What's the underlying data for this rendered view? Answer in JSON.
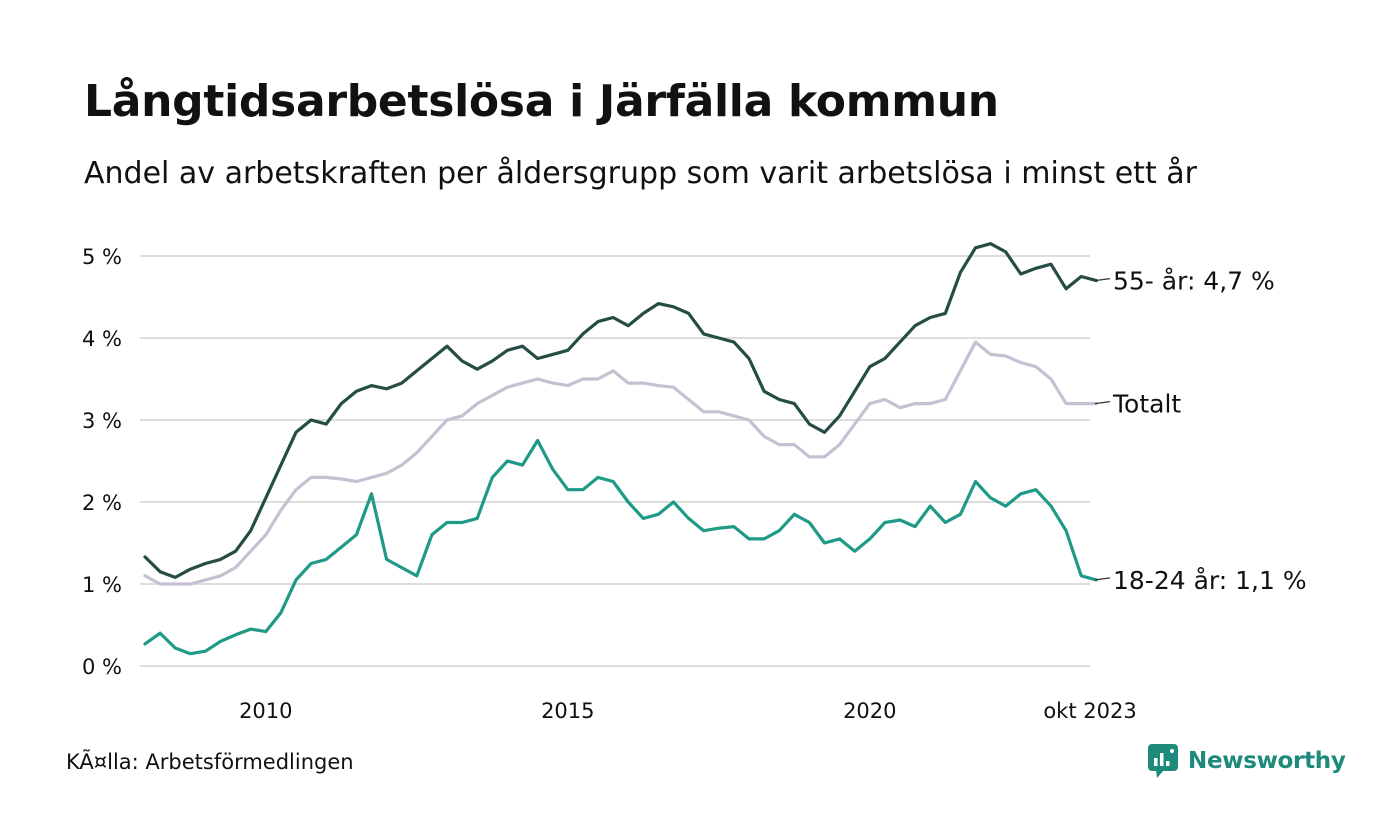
{
  "title": "Långtidsarbetslösa i Järfälla kommun",
  "subtitle": "Andel av arbetskraften per åldersgrupp som varit arbetslösa i minst ett år",
  "source": "KÃ¤lla: Arbetsförmedlingen",
  "brand": "Newsworthy",
  "colors": {
    "dark_green": "#264d45",
    "teal": "#1f9a86",
    "lavender": "#c4c2d2",
    "grid": "#dddddd",
    "brand": "#1e8a7b"
  },
  "chart_data": {
    "type": "line",
    "title": "Långtidsarbetslösa i Järfälla kommun",
    "ylabel": "",
    "xlabel": "",
    "ylim": [
      0,
      5.2
    ],
    "xlim": [
      2008.0,
      2023.75
    ],
    "yticks": [
      {
        "value": 0,
        "label": "0 %"
      },
      {
        "value": 1,
        "label": "1 %"
      },
      {
        "value": 2,
        "label": "2 %"
      },
      {
        "value": 3,
        "label": "3 %"
      },
      {
        "value": 4,
        "label": "4 %"
      },
      {
        "value": 5,
        "label": "5 %"
      }
    ],
    "xticks": [
      {
        "value": 2010,
        "label": "2010"
      },
      {
        "value": 2015,
        "label": "2015"
      },
      {
        "value": 2020,
        "label": "2020"
      },
      {
        "value": 2023.75,
        "label": "okt 2023"
      }
    ],
    "series": [
      {
        "name": "55- år",
        "label": "55- år: 4,7 %",
        "color": "#264d45",
        "points": [
          [
            2008.0,
            1.33
          ],
          [
            2008.25,
            1.15
          ],
          [
            2008.5,
            1.08
          ],
          [
            2008.75,
            1.18
          ],
          [
            2009.0,
            1.25
          ],
          [
            2009.25,
            1.3
          ],
          [
            2009.5,
            1.4
          ],
          [
            2009.75,
            1.65
          ],
          [
            2010.0,
            2.05
          ],
          [
            2010.25,
            2.45
          ],
          [
            2010.5,
            2.85
          ],
          [
            2010.75,
            3.0
          ],
          [
            2011.0,
            2.95
          ],
          [
            2011.25,
            3.2
          ],
          [
            2011.5,
            3.35
          ],
          [
            2011.75,
            3.42
          ],
          [
            2012.0,
            3.38
          ],
          [
            2012.25,
            3.45
          ],
          [
            2012.5,
            3.6
          ],
          [
            2012.75,
            3.75
          ],
          [
            2013.0,
            3.9
          ],
          [
            2013.25,
            3.72
          ],
          [
            2013.5,
            3.62
          ],
          [
            2013.75,
            3.72
          ],
          [
            2014.0,
            3.85
          ],
          [
            2014.25,
            3.9
          ],
          [
            2014.5,
            3.75
          ],
          [
            2014.75,
            3.8
          ],
          [
            2015.0,
            3.85
          ],
          [
            2015.25,
            4.05
          ],
          [
            2015.5,
            4.2
          ],
          [
            2015.75,
            4.25
          ],
          [
            2016.0,
            4.15
          ],
          [
            2016.25,
            4.3
          ],
          [
            2016.5,
            4.42
          ],
          [
            2016.75,
            4.38
          ],
          [
            2017.0,
            4.3
          ],
          [
            2017.25,
            4.05
          ],
          [
            2017.5,
            4.0
          ],
          [
            2017.75,
            3.95
          ],
          [
            2018.0,
            3.75
          ],
          [
            2018.25,
            3.35
          ],
          [
            2018.5,
            3.25
          ],
          [
            2018.75,
            3.2
          ],
          [
            2019.0,
            2.95
          ],
          [
            2019.25,
            2.85
          ],
          [
            2019.5,
            3.05
          ],
          [
            2019.75,
            3.35
          ],
          [
            2020.0,
            3.65
          ],
          [
            2020.25,
            3.75
          ],
          [
            2020.5,
            3.95
          ],
          [
            2020.75,
            4.15
          ],
          [
            2021.0,
            4.25
          ],
          [
            2021.25,
            4.3
          ],
          [
            2021.5,
            4.8
          ],
          [
            2021.75,
            5.1
          ],
          [
            2022.0,
            5.15
          ],
          [
            2022.25,
            5.05
          ],
          [
            2022.5,
            4.78
          ],
          [
            2022.75,
            4.85
          ],
          [
            2023.0,
            4.9
          ],
          [
            2023.25,
            4.6
          ],
          [
            2023.5,
            4.75
          ],
          [
            2023.75,
            4.7
          ]
        ]
      },
      {
        "name": "Totalt",
        "label": "Totalt",
        "color": "#c4c2d2",
        "points": [
          [
            2008.0,
            1.1
          ],
          [
            2008.25,
            1.0
          ],
          [
            2008.5,
            1.0
          ],
          [
            2008.75,
            1.0
          ],
          [
            2009.0,
            1.05
          ],
          [
            2009.25,
            1.1
          ],
          [
            2009.5,
            1.2
          ],
          [
            2009.75,
            1.4
          ],
          [
            2010.0,
            1.6
          ],
          [
            2010.25,
            1.9
          ],
          [
            2010.5,
            2.15
          ],
          [
            2010.75,
            2.3
          ],
          [
            2011.0,
            2.3
          ],
          [
            2011.25,
            2.28
          ],
          [
            2011.5,
            2.25
          ],
          [
            2011.75,
            2.3
          ],
          [
            2012.0,
            2.35
          ],
          [
            2012.25,
            2.45
          ],
          [
            2012.5,
            2.6
          ],
          [
            2012.75,
            2.8
          ],
          [
            2013.0,
            3.0
          ],
          [
            2013.25,
            3.05
          ],
          [
            2013.5,
            3.2
          ],
          [
            2013.75,
            3.3
          ],
          [
            2014.0,
            3.4
          ],
          [
            2014.25,
            3.45
          ],
          [
            2014.5,
            3.5
          ],
          [
            2014.75,
            3.45
          ],
          [
            2015.0,
            3.42
          ],
          [
            2015.25,
            3.5
          ],
          [
            2015.5,
            3.5
          ],
          [
            2015.75,
            3.6
          ],
          [
            2016.0,
            3.45
          ],
          [
            2016.25,
            3.45
          ],
          [
            2016.5,
            3.42
          ],
          [
            2016.75,
            3.4
          ],
          [
            2017.0,
            3.25
          ],
          [
            2017.25,
            3.1
          ],
          [
            2017.5,
            3.1
          ],
          [
            2017.75,
            3.05
          ],
          [
            2018.0,
            3.0
          ],
          [
            2018.25,
            2.8
          ],
          [
            2018.5,
            2.7
          ],
          [
            2018.75,
            2.7
          ],
          [
            2019.0,
            2.55
          ],
          [
            2019.25,
            2.55
          ],
          [
            2019.5,
            2.7
          ],
          [
            2019.75,
            2.95
          ],
          [
            2020.0,
            3.2
          ],
          [
            2020.25,
            3.25
          ],
          [
            2020.5,
            3.15
          ],
          [
            2020.75,
            3.2
          ],
          [
            2021.0,
            3.2
          ],
          [
            2021.25,
            3.25
          ],
          [
            2021.5,
            3.6
          ],
          [
            2021.75,
            3.95
          ],
          [
            2022.0,
            3.8
          ],
          [
            2022.25,
            3.78
          ],
          [
            2022.5,
            3.7
          ],
          [
            2022.75,
            3.65
          ],
          [
            2023.0,
            3.5
          ],
          [
            2023.25,
            3.2
          ],
          [
            2023.5,
            3.2
          ],
          [
            2023.75,
            3.2
          ]
        ]
      },
      {
        "name": "18-24 år",
        "label": "18-24 år: 1,1 %",
        "color": "#1f9a86",
        "points": [
          [
            2008.0,
            0.27
          ],
          [
            2008.25,
            0.4
          ],
          [
            2008.5,
            0.22
          ],
          [
            2008.75,
            0.15
          ],
          [
            2009.0,
            0.18
          ],
          [
            2009.25,
            0.3
          ],
          [
            2009.5,
            0.38
          ],
          [
            2009.75,
            0.45
          ],
          [
            2010.0,
            0.42
          ],
          [
            2010.25,
            0.65
          ],
          [
            2010.5,
            1.05
          ],
          [
            2010.75,
            1.25
          ],
          [
            2011.0,
            1.3
          ],
          [
            2011.25,
            1.45
          ],
          [
            2011.5,
            1.6
          ],
          [
            2011.75,
            2.1
          ],
          [
            2012.0,
            1.3
          ],
          [
            2012.25,
            1.2
          ],
          [
            2012.5,
            1.1
          ],
          [
            2012.75,
            1.6
          ],
          [
            2013.0,
            1.75
          ],
          [
            2013.25,
            1.75
          ],
          [
            2013.5,
            1.8
          ],
          [
            2013.75,
            2.3
          ],
          [
            2014.0,
            2.5
          ],
          [
            2014.25,
            2.45
          ],
          [
            2014.5,
            2.75
          ],
          [
            2014.75,
            2.4
          ],
          [
            2015.0,
            2.15
          ],
          [
            2015.25,
            2.15
          ],
          [
            2015.5,
            2.3
          ],
          [
            2015.75,
            2.25
          ],
          [
            2016.0,
            2.0
          ],
          [
            2016.25,
            1.8
          ],
          [
            2016.5,
            1.85
          ],
          [
            2016.75,
            2.0
          ],
          [
            2017.0,
            1.8
          ],
          [
            2017.25,
            1.65
          ],
          [
            2017.5,
            1.68
          ],
          [
            2017.75,
            1.7
          ],
          [
            2018.0,
            1.55
          ],
          [
            2018.25,
            1.55
          ],
          [
            2018.5,
            1.65
          ],
          [
            2018.75,
            1.85
          ],
          [
            2019.0,
            1.75
          ],
          [
            2019.25,
            1.5
          ],
          [
            2019.5,
            1.55
          ],
          [
            2019.75,
            1.4
          ],
          [
            2020.0,
            1.55
          ],
          [
            2020.25,
            1.75
          ],
          [
            2020.5,
            1.78
          ],
          [
            2020.75,
            1.7
          ],
          [
            2021.0,
            1.95
          ],
          [
            2021.25,
            1.75
          ],
          [
            2021.5,
            1.85
          ],
          [
            2021.75,
            2.25
          ],
          [
            2022.0,
            2.05
          ],
          [
            2022.25,
            1.95
          ],
          [
            2022.5,
            2.1
          ],
          [
            2022.75,
            2.15
          ],
          [
            2023.0,
            1.95
          ],
          [
            2023.25,
            1.65
          ],
          [
            2023.5,
            1.1
          ],
          [
            2023.75,
            1.05
          ]
        ]
      }
    ]
  }
}
